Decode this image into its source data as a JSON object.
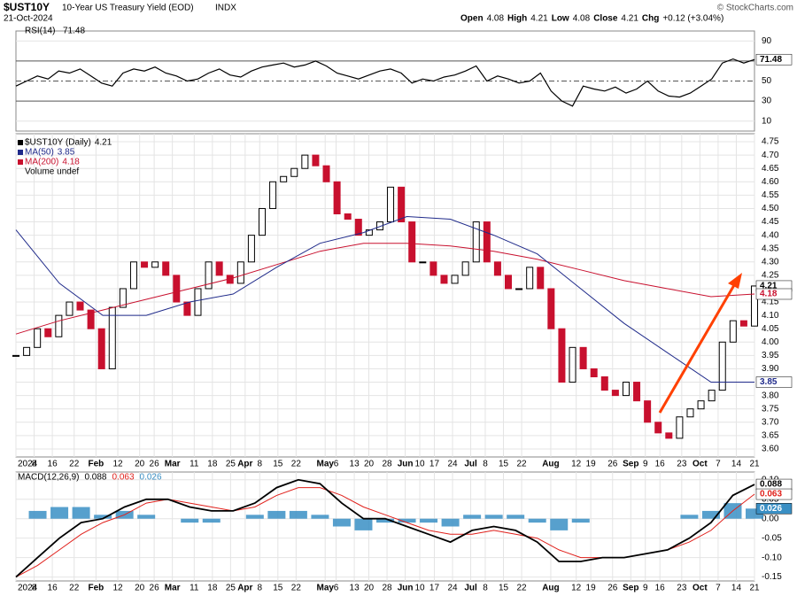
{
  "header": {
    "symbol": "$UST10Y",
    "name": "10-Year US Treasury Yield (EOD)",
    "exchange": "INDX",
    "date": "21-Oct-2024",
    "quote": [
      {
        "label": "Open",
        "value": "4.08"
      },
      {
        "label": "High",
        "value": "4.21"
      },
      {
        "label": "Low",
        "value": "4.08"
      },
      {
        "label": "Close",
        "value": "4.21"
      },
      {
        "label": "Chg",
        "value": "+0.12 (+3.04%)"
      }
    ],
    "credit": "© StockCharts.com"
  },
  "chart_data": [
    {
      "type": "line",
      "title": "RSI(14)",
      "xlim": [
        0,
        203
      ],
      "ylim": [
        0,
        100
      ],
      "yticks": [
        10,
        30,
        50,
        70,
        90
      ],
      "grid": true,
      "series": [
        {
          "name": "RSI(14)",
          "color": "#000000",
          "values": [
            45,
            50,
            55,
            52,
            60,
            58,
            62,
            55,
            48,
            45,
            58,
            62,
            60,
            64,
            58,
            55,
            50,
            52,
            58,
            62,
            56,
            54,
            60,
            64,
            66,
            68,
            64,
            66,
            70,
            65,
            58,
            55,
            52,
            56,
            60,
            62,
            58,
            48,
            52,
            50,
            54,
            56,
            60,
            65,
            50,
            55,
            52,
            48,
            50,
            58,
            40,
            30,
            25,
            45,
            42,
            40,
            44,
            38,
            42,
            50,
            40,
            35,
            34,
            38,
            45,
            52,
            68,
            72,
            68,
            71.48
          ]
        }
      ]
    },
    {
      "type": "candlestick",
      "title": "$UST10Y (Daily)",
      "volume_label": "Volume undef",
      "xlim": [
        0,
        203
      ],
      "ylim": [
        3.57,
        4.78
      ],
      "grid": true,
      "yticks": [
        {
          "value": 3.6,
          "label": "3.60"
        },
        3.65,
        {
          "value": 3.7,
          "label": "3.70"
        },
        3.75,
        {
          "value": 3.8,
          "label": "3.80"
        },
        3.85,
        {
          "value": 3.9,
          "label": "3.90"
        },
        3.95,
        {
          "value": 4,
          "label": "4.00"
        },
        4.05,
        {
          "value": 4.1,
          "label": "4.10"
        },
        4.15,
        {
          "value": 4.2,
          "label": "4.20"
        },
        4.25,
        {
          "value": 4.3,
          "label": "4.30"
        },
        4.35,
        {
          "value": 4.4,
          "label": "4.40"
        },
        4.45,
        {
          "value": 4.5,
          "label": "4.50"
        },
        4.55,
        {
          "value": 4.6,
          "label": "4.60"
        },
        4.65,
        {
          "value": 4.7,
          "label": "4.70"
        },
        4.75
      ],
      "xticks": [
        {
          "value": 0,
          "label": "2024"
        },
        {
          "value": 5,
          "label": "8"
        },
        {
          "value": 10,
          "label": "16"
        },
        {
          "value": 16,
          "label": "22"
        },
        {
          "value": 22,
          "label": "Feb"
        },
        {
          "value": 28,
          "label": "12"
        },
        {
          "value": 34,
          "label": "20"
        },
        {
          "value": 38,
          "label": "26"
        },
        {
          "value": 43,
          "label": "Mar"
        },
        {
          "value": 49,
          "label": "11"
        },
        {
          "value": 54,
          "label": "18"
        },
        {
          "value": 59,
          "label": "25"
        },
        {
          "value": 63,
          "label": "Apr"
        },
        {
          "value": 67,
          "label": "8"
        },
        {
          "value": 72,
          "label": "15"
        },
        {
          "value": 77,
          "label": "22"
        },
        {
          "value": 85,
          "label": "May"
        },
        {
          "value": 88,
          "label": "6"
        },
        {
          "value": 93,
          "label": "13"
        },
        {
          "value": 97,
          "label": "20"
        },
        {
          "value": 102,
          "label": "28"
        },
        {
          "value": 107,
          "label": "Jun"
        },
        {
          "value": 111,
          "label": "10"
        },
        {
          "value": 115,
          "label": "17"
        },
        {
          "value": 120,
          "label": "24"
        },
        {
          "value": 125,
          "label": "Jul"
        },
        {
          "value": 129,
          "label": "8"
        },
        {
          "value": 134,
          "label": "15"
        },
        {
          "value": 139,
          "label": "22"
        },
        {
          "value": 147,
          "label": "Aug"
        },
        {
          "value": 154,
          "label": "12"
        },
        {
          "value": 158,
          "label": "19"
        },
        {
          "value": 164,
          "label": "26"
        },
        {
          "value": 169,
          "label": "Sep"
        },
        {
          "value": 173,
          "label": "9"
        },
        {
          "value": 177,
          "label": "16"
        },
        {
          "value": 183,
          "label": "23"
        },
        {
          "value": 188,
          "label": "Oct"
        },
        {
          "value": 193,
          "label": "7"
        },
        {
          "value": 198,
          "label": "14"
        },
        {
          "value": 203,
          "label": "21"
        }
      ],
      "up_color": "#000000",
      "down_color": "#c8102e",
      "series": [
        {
          "name": "$UST10Y (Daily)",
          "values": [
            3.95,
            3.98,
            4.05,
            4.02,
            4.1,
            4.15,
            4.12,
            4.05,
            3.9,
            4.13,
            4.2,
            4.3,
            4.28,
            4.3,
            4.25,
            4.15,
            4.1,
            4.2,
            4.3,
            4.25,
            4.22,
            4.3,
            4.4,
            4.5,
            4.6,
            4.62,
            4.65,
            4.7,
            4.66,
            4.6,
            4.48,
            4.46,
            4.4,
            4.42,
            4.45,
            4.58,
            4.45,
            4.3,
            4.3,
            4.25,
            4.22,
            4.25,
            4.3,
            4.45,
            4.3,
            4.25,
            4.2,
            4.2,
            4.28,
            4.2,
            4.05,
            3.85,
            3.98,
            3.9,
            3.87,
            3.82,
            3.8,
            3.85,
            3.78,
            3.7,
            3.66,
            3.64,
            3.72,
            3.75,
            3.78,
            3.82,
            4.0,
            4.08,
            4.06,
            4.21
          ]
        },
        {
          "name": "MA(50)",
          "color": "#1f2a8a",
          "values": [
            4.42,
            4.22,
            4.1,
            4.1,
            4.15,
            4.18,
            4.28,
            4.37,
            4.41,
            4.47,
            4.46,
            4.4,
            4.33,
            4.2,
            4.07,
            3.96,
            3.85,
            3.85
          ]
        },
        {
          "name": "MA(200)",
          "color": "#c8102e",
          "values": [
            4.03,
            4.08,
            4.12,
            4.16,
            4.2,
            4.24,
            4.29,
            4.34,
            4.37,
            4.37,
            4.36,
            4.34,
            4.31,
            4.27,
            4.23,
            4.2,
            4.17,
            4.18
          ]
        }
      ]
    },
    {
      "type": "macd",
      "title": "MACD(12,26,9)",
      "xlim": [
        0,
        203
      ],
      "ylim": [
        -0.16,
        0.12
      ],
      "grid": true,
      "yticks": [
        {
          "value": 0.1,
          "label": "0.10"
        },
        0.05,
        {
          "value": 0,
          "label": "0.00"
        },
        -0.05,
        {
          "value": -0.1,
          "label": "-0.10"
        },
        -0.15
      ],
      "series": [
        {
          "name": "MACD",
          "color": "#000000",
          "values": [
            -0.15,
            -0.1,
            -0.05,
            -0.01,
            0.0,
            0.03,
            0.05,
            0.05,
            0.03,
            0.02,
            0.02,
            0.04,
            0.08,
            0.1,
            0.09,
            0.04,
            0.0,
            0.0,
            -0.02,
            -0.04,
            -0.06,
            -0.03,
            -0.02,
            -0.03,
            -0.06,
            -0.11,
            -0.11,
            -0.1,
            -0.1,
            -0.09,
            -0.08,
            -0.05,
            -0.01,
            0.06,
            0.088
          ]
        },
        {
          "name": "Signal",
          "color": "#e0201b",
          "values": [
            -0.15,
            -0.12,
            -0.08,
            -0.04,
            -0.01,
            0.01,
            0.04,
            0.05,
            0.04,
            0.03,
            0.02,
            0.03,
            0.06,
            0.08,
            0.08,
            0.06,
            0.03,
            0.01,
            -0.01,
            -0.03,
            -0.04,
            -0.04,
            -0.03,
            -0.04,
            -0.05,
            -0.08,
            -0.1,
            -0.1,
            -0.1,
            -0.09,
            -0.08,
            -0.06,
            -0.03,
            0.02,
            0.063
          ]
        },
        {
          "name": "Histogram",
          "color": "#3a8fc4",
          "values": [
            0,
            0.02,
            0.03,
            0.03,
            0.01,
            0.02,
            0.01,
            0,
            -0.01,
            -0.01,
            0,
            0.01,
            0.02,
            0.02,
            0.01,
            -0.02,
            -0.03,
            -0.01,
            -0.01,
            -0.01,
            -0.02,
            0.01,
            0.01,
            0.01,
            -0.01,
            -0.03,
            -0.01,
            0,
            0,
            0,
            0,
            0.01,
            0.02,
            0.04,
            0.026
          ]
        }
      ]
    }
  ]
}
